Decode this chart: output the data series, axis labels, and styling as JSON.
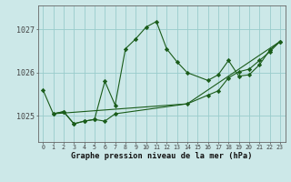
{
  "bg_color": "#cce8e8",
  "grid_color": "#99cccc",
  "line_color": "#1a5c1a",
  "marker_color": "#1a5c1a",
  "ylabel_values": [
    1025,
    1026,
    1027
  ],
  "xlabel_label": "Graphe pression niveau de la mer (hPa)",
  "xlim": [
    -0.5,
    23.5
  ],
  "ylim": [
    1024.4,
    1027.55
  ],
  "line1": {
    "x": [
      0,
      1,
      2,
      3,
      4,
      5,
      6,
      7,
      8,
      9,
      10,
      11,
      12,
      13,
      14,
      16,
      17,
      18,
      19,
      20,
      21,
      22,
      23
    ],
    "y": [
      1025.6,
      1025.05,
      1025.1,
      1024.82,
      1024.88,
      1024.92,
      1025.8,
      1025.25,
      1026.55,
      1026.78,
      1027.05,
      1027.18,
      1026.55,
      1026.25,
      1026.0,
      1025.82,
      1025.95,
      1026.28,
      1025.92,
      1025.95,
      1026.18,
      1026.52,
      1026.72
    ]
  },
  "line2": {
    "x": [
      1,
      2,
      3,
      4,
      5,
      6,
      7,
      14,
      16,
      17,
      18,
      19,
      20,
      21,
      22,
      23
    ],
    "y": [
      1025.05,
      1025.1,
      1024.82,
      1024.88,
      1024.92,
      1024.88,
      1025.05,
      1025.28,
      1025.48,
      1025.58,
      1025.88,
      1026.02,
      1026.08,
      1026.28,
      1026.48,
      1026.72
    ]
  },
  "line3": {
    "x": [
      1,
      14,
      23
    ],
    "y": [
      1025.05,
      1025.28,
      1026.72
    ]
  }
}
